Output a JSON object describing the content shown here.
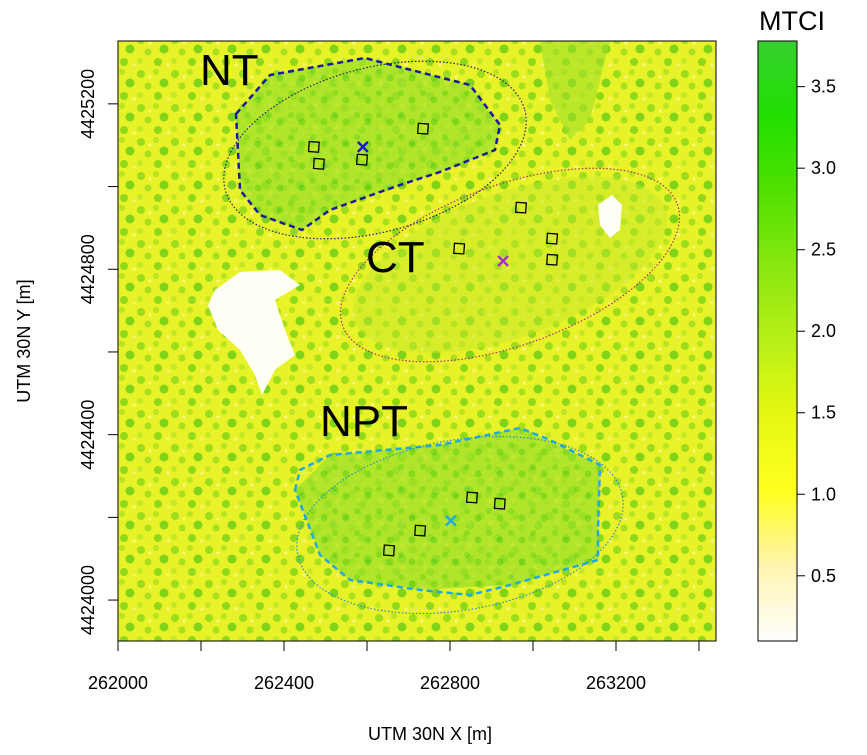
{
  "chart_data": {
    "type": "raster",
    "xlabel": "UTM 30N X [m]",
    "ylabel": "UTM 30N Y [m]",
    "xlim": [
      262000,
      263441
    ],
    "ylim": [
      4423901,
      4425352
    ],
    "xticks": [
      262000,
      262400,
      262800,
      263200
    ],
    "x_minor_ticks": [
      262200,
      262600,
      263000,
      263400
    ],
    "yticks": [
      4424000,
      4424400,
      4424800,
      4425200
    ],
    "y_minor_ticks": [
      4424200,
      4424600,
      4425000
    ],
    "colorbar": {
      "title": "MTCI",
      "lim": [
        0.1,
        3.78
      ],
      "ticks": [
        0.5,
        {
          "value": 1,
          "label": "1.0"
        },
        1.5,
        {
          "value": 2,
          "label": "2.0"
        },
        2.5,
        {
          "value": 3,
          "label": "3.0"
        },
        3.5
      ],
      "colors": [
        "#ffffff",
        "#fff4b0",
        "#ffff20",
        "#e6f810",
        "#b8f018",
        "#88e810",
        "#50e000",
        "#20e000",
        "#38d030"
      ]
    },
    "plots": {
      "x": [
        262472,
        262484,
        262588,
        262735,
        262971,
        262822,
        263046,
        263046,
        262853,
        262920,
        262728,
        262653
      ],
      "y": [
        4425096,
        4425055,
        4425065,
        4425140,
        4424949,
        4424850,
        4424874,
        4424823,
        4424248,
        4424233,
        4424168,
        4424120
      ]
    },
    "sites": [
      {
        "name": "NT",
        "color": "#1a1acc",
        "x": 262590,
        "y": 4425096
      },
      {
        "name": "CT",
        "color": "#a832c8",
        "x": 262928,
        "y": 4424820
      },
      {
        "name": "NPT",
        "color": "#22aadd",
        "x": 262802,
        "y": 4424192
      }
    ]
  }
}
